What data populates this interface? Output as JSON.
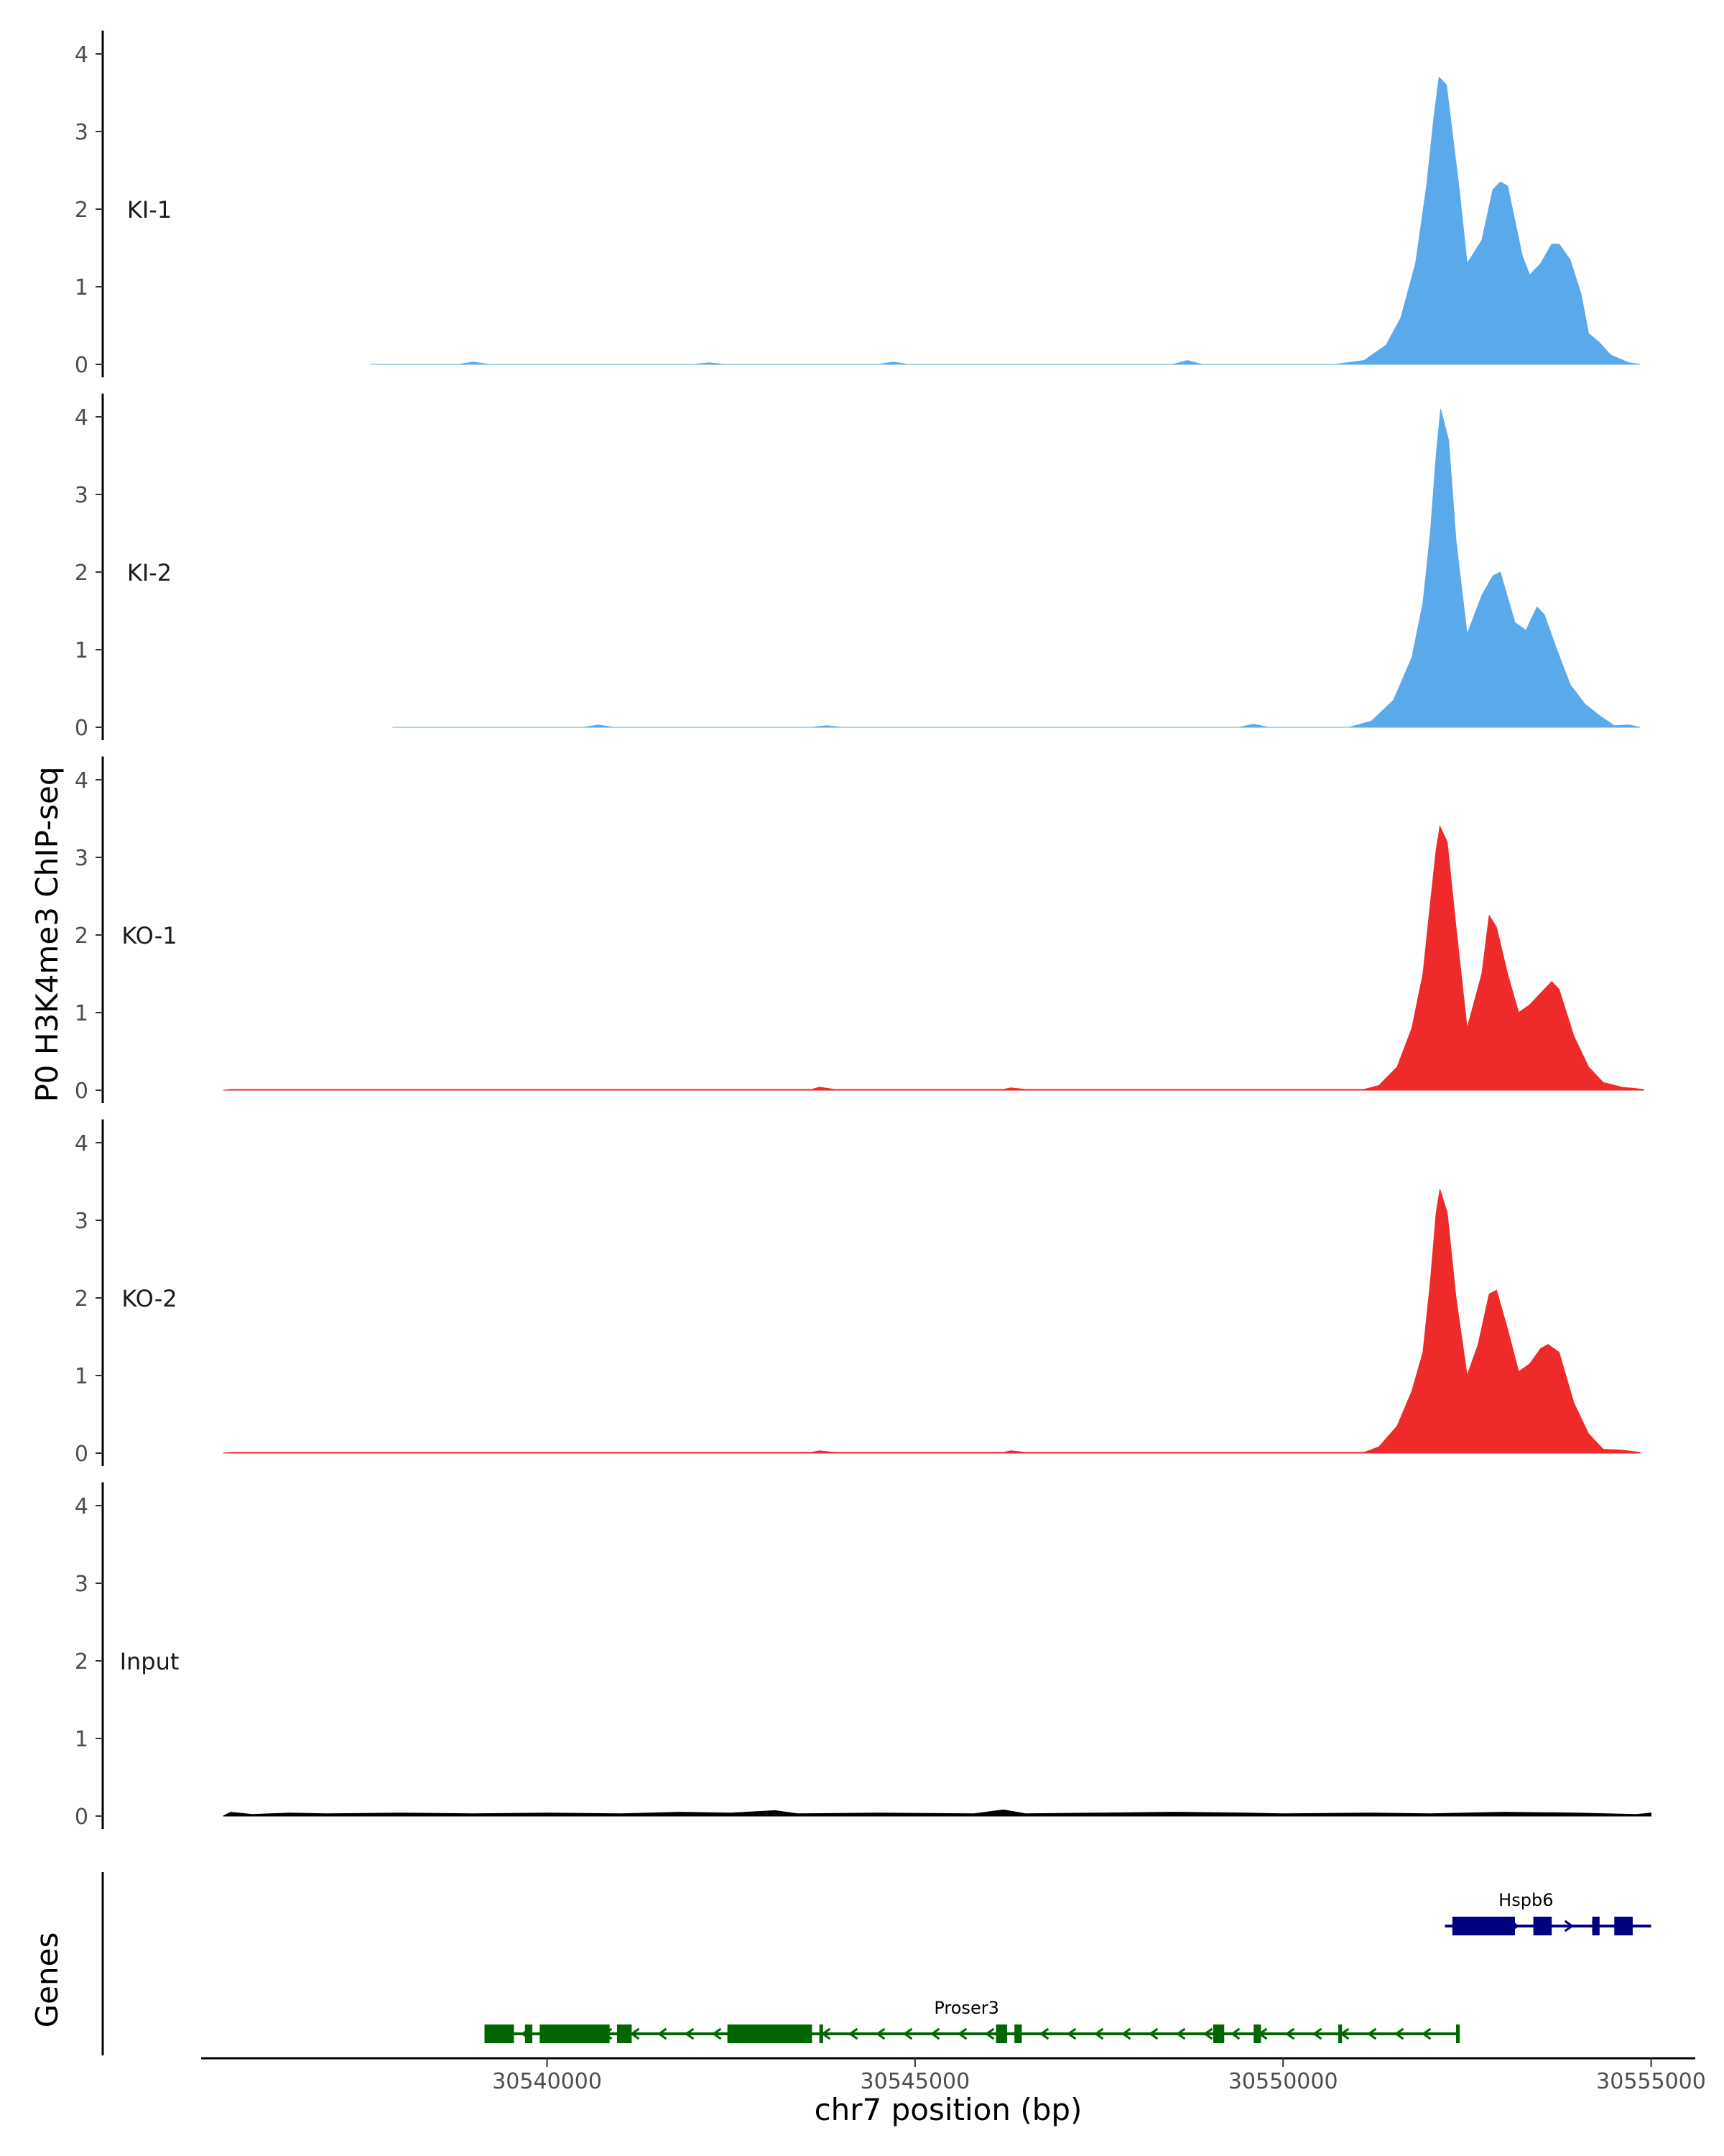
{
  "chart_data": {
    "type": "area",
    "ylabel": "P0 H3K4me3 ChIP-seq",
    "xlabel": "chr7 position (bp)",
    "xlim": [
      30535300,
      30555600
    ],
    "ylim": [
      0,
      4.3
    ],
    "y_ticks": [
      "0",
      "1",
      "2",
      "3",
      "4"
    ],
    "x_ticks": [
      "30540000",
      "30545000",
      "30550000",
      "30555000"
    ],
    "x_tick_values": [
      30540000,
      30545000,
      30550000,
      30555000
    ],
    "grid": false,
    "genes_label": "Genes",
    "series": [
      {
        "name": "KI-1",
        "color": "#5aaaeb",
        "points": [
          [
            30537600,
            0
          ],
          [
            30538800,
            0
          ],
          [
            30539000,
            0.03
          ],
          [
            30539200,
            0
          ],
          [
            30542000,
            0
          ],
          [
            30542200,
            0.02
          ],
          [
            30542400,
            0
          ],
          [
            30544500,
            0
          ],
          [
            30544700,
            0.03
          ],
          [
            30544900,
            0
          ],
          [
            30548500,
            0
          ],
          [
            30548700,
            0.05
          ],
          [
            30548900,
            0
          ],
          [
            30550700,
            0
          ],
          [
            30551100,
            0.05
          ],
          [
            30551400,
            0.25
          ],
          [
            30551600,
            0.6
          ],
          [
            30551800,
            1.3
          ],
          [
            30551950,
            2.3
          ],
          [
            30552050,
            3.2
          ],
          [
            30552120,
            3.7
          ],
          [
            30552220,
            3.6
          ],
          [
            30552400,
            2.2
          ],
          [
            30552500,
            1.3
          ],
          [
            30552700,
            1.6
          ],
          [
            30552850,
            2.25
          ],
          [
            30552950,
            2.35
          ],
          [
            30553050,
            2.3
          ],
          [
            30553250,
            1.4
          ],
          [
            30553350,
            1.15
          ],
          [
            30553500,
            1.3
          ],
          [
            30553650,
            1.55
          ],
          [
            30553750,
            1.55
          ],
          [
            30553900,
            1.35
          ],
          [
            30554050,
            0.9
          ],
          [
            30554150,
            0.4
          ],
          [
            30554300,
            0.28
          ],
          [
            30554450,
            0.12
          ],
          [
            30554700,
            0.02
          ],
          [
            30554850,
            0
          ]
        ]
      },
      {
        "name": "KI-2",
        "color": "#5aaaeb",
        "points": [
          [
            30537900,
            0
          ],
          [
            30540500,
            0
          ],
          [
            30540700,
            0.03
          ],
          [
            30540900,
            0
          ],
          [
            30543600,
            0
          ],
          [
            30543800,
            0.02
          ],
          [
            30544000,
            0
          ],
          [
            30549400,
            0
          ],
          [
            30549600,
            0.04
          ],
          [
            30549800,
            0
          ],
          [
            30550900,
            0
          ],
          [
            30551200,
            0.08
          ],
          [
            30551500,
            0.35
          ],
          [
            30551750,
            0.9
          ],
          [
            30551900,
            1.6
          ],
          [
            30552000,
            2.5
          ],
          [
            30552080,
            3.5
          ],
          [
            30552140,
            4.1
          ],
          [
            30552250,
            3.7
          ],
          [
            30552350,
            2.4
          ],
          [
            30552500,
            1.2
          ],
          [
            30552700,
            1.7
          ],
          [
            30552850,
            1.95
          ],
          [
            30552950,
            2.0
          ],
          [
            30553150,
            1.35
          ],
          [
            30553300,
            1.25
          ],
          [
            30553450,
            1.55
          ],
          [
            30553550,
            1.45
          ],
          [
            30553700,
            1.05
          ],
          [
            30553900,
            0.55
          ],
          [
            30554100,
            0.3
          ],
          [
            30554300,
            0.15
          ],
          [
            30554500,
            0.02
          ],
          [
            30554700,
            0.03
          ],
          [
            30554850,
            0
          ]
        ]
      },
      {
        "name": "KO-1",
        "color": "#ee2a2a",
        "points": [
          [
            30535600,
            0
          ],
          [
            30535700,
            0.01
          ],
          [
            30539000,
            0.01
          ],
          [
            30543600,
            0.01
          ],
          [
            30543700,
            0.04
          ],
          [
            30543900,
            0.01
          ],
          [
            30546200,
            0.01
          ],
          [
            30546300,
            0.03
          ],
          [
            30546500,
            0.01
          ],
          [
            30551100,
            0.01
          ],
          [
            30551300,
            0.06
          ],
          [
            30551550,
            0.3
          ],
          [
            30551750,
            0.8
          ],
          [
            30551900,
            1.5
          ],
          [
            30552000,
            2.4
          ],
          [
            30552080,
            3.1
          ],
          [
            30552130,
            3.4
          ],
          [
            30552230,
            3.2
          ],
          [
            30552350,
            2.1
          ],
          [
            30552500,
            0.8
          ],
          [
            30552700,
            1.5
          ],
          [
            30552800,
            2.25
          ],
          [
            30552900,
            2.1
          ],
          [
            30553050,
            1.5
          ],
          [
            30553200,
            1.0
          ],
          [
            30553350,
            1.1
          ],
          [
            30553500,
            1.25
          ],
          [
            30553650,
            1.4
          ],
          [
            30553750,
            1.3
          ],
          [
            30553950,
            0.7
          ],
          [
            30554150,
            0.3
          ],
          [
            30554350,
            0.1
          ],
          [
            30554600,
            0.04
          ],
          [
            30554900,
            0.01
          ]
        ]
      },
      {
        "name": "KO-2",
        "color": "#ee2a2a",
        "points": [
          [
            30535600,
            0
          ],
          [
            30535700,
            0.01
          ],
          [
            30539000,
            0.01
          ],
          [
            30543600,
            0.01
          ],
          [
            30543700,
            0.03
          ],
          [
            30543900,
            0.01
          ],
          [
            30546200,
            0.01
          ],
          [
            30546300,
            0.03
          ],
          [
            30546500,
            0.01
          ],
          [
            30551100,
            0.01
          ],
          [
            30551300,
            0.08
          ],
          [
            30551550,
            0.35
          ],
          [
            30551750,
            0.8
          ],
          [
            30551900,
            1.3
          ],
          [
            30552000,
            2.2
          ],
          [
            30552080,
            3.1
          ],
          [
            30552130,
            3.4
          ],
          [
            30552230,
            3.1
          ],
          [
            30552350,
            2.0
          ],
          [
            30552500,
            1.0
          ],
          [
            30552650,
            1.4
          ],
          [
            30552800,
            2.05
          ],
          [
            30552900,
            2.1
          ],
          [
            30553050,
            1.6
          ],
          [
            30553200,
            1.05
          ],
          [
            30553350,
            1.15
          ],
          [
            30553500,
            1.35
          ],
          [
            30553600,
            1.4
          ],
          [
            30553750,
            1.3
          ],
          [
            30553950,
            0.65
          ],
          [
            30554150,
            0.25
          ],
          [
            30554350,
            0.05
          ],
          [
            30554600,
            0.04
          ],
          [
            30554850,
            0.01
          ]
        ]
      },
      {
        "name": "Input",
        "color": "#000000",
        "points": [
          [
            30535600,
            0
          ],
          [
            30535700,
            0.05
          ],
          [
            30536000,
            0.02
          ],
          [
            30536500,
            0.04
          ],
          [
            30537000,
            0.03
          ],
          [
            30538000,
            0.04
          ],
          [
            30539000,
            0.03
          ],
          [
            30540000,
            0.04
          ],
          [
            30541000,
            0.03
          ],
          [
            30541800,
            0.05
          ],
          [
            30542500,
            0.04
          ],
          [
            30543100,
            0.07
          ],
          [
            30543400,
            0.03
          ],
          [
            30544500,
            0.04
          ],
          [
            30545800,
            0.03
          ],
          [
            30546200,
            0.08
          ],
          [
            30546500,
            0.03
          ],
          [
            30547500,
            0.04
          ],
          [
            30548500,
            0.05
          ],
          [
            30549500,
            0.04
          ],
          [
            30550000,
            0.03
          ],
          [
            30551200,
            0.04
          ],
          [
            30552000,
            0.03
          ],
          [
            30553000,
            0.05
          ],
          [
            30554000,
            0.04
          ],
          [
            30554800,
            0.02
          ],
          [
            30555000,
            0.04
          ],
          [
            30555000,
            0
          ]
        ]
      }
    ],
    "genes": [
      {
        "name": "Proser3",
        "color": "#006600",
        "strand": "-",
        "start": 30539150,
        "end": 30552400,
        "exons": [
          [
            30539150,
            30539550
          ],
          [
            30539700,
            30539800
          ],
          [
            30539900,
            30540850
          ],
          [
            30540950,
            30541150
          ],
          [
            30542450,
            30543600
          ],
          [
            30543700,
            30543750
          ],
          [
            30546100,
            30546250
          ],
          [
            30546350,
            30546450
          ],
          [
            30549050,
            30549200
          ],
          [
            30549600,
            30549700
          ],
          [
            30550750,
            30550800
          ],
          [
            30552350,
            30552400
          ]
        ]
      },
      {
        "name": "Hspb6",
        "color": "#000080",
        "strand": "+",
        "start": 30552200,
        "end": 30555000,
        "exons": [
          [
            30552300,
            30553150
          ],
          [
            30553400,
            30553650
          ],
          [
            30554200,
            30554300
          ],
          [
            30554500,
            30554750
          ]
        ]
      }
    ]
  }
}
